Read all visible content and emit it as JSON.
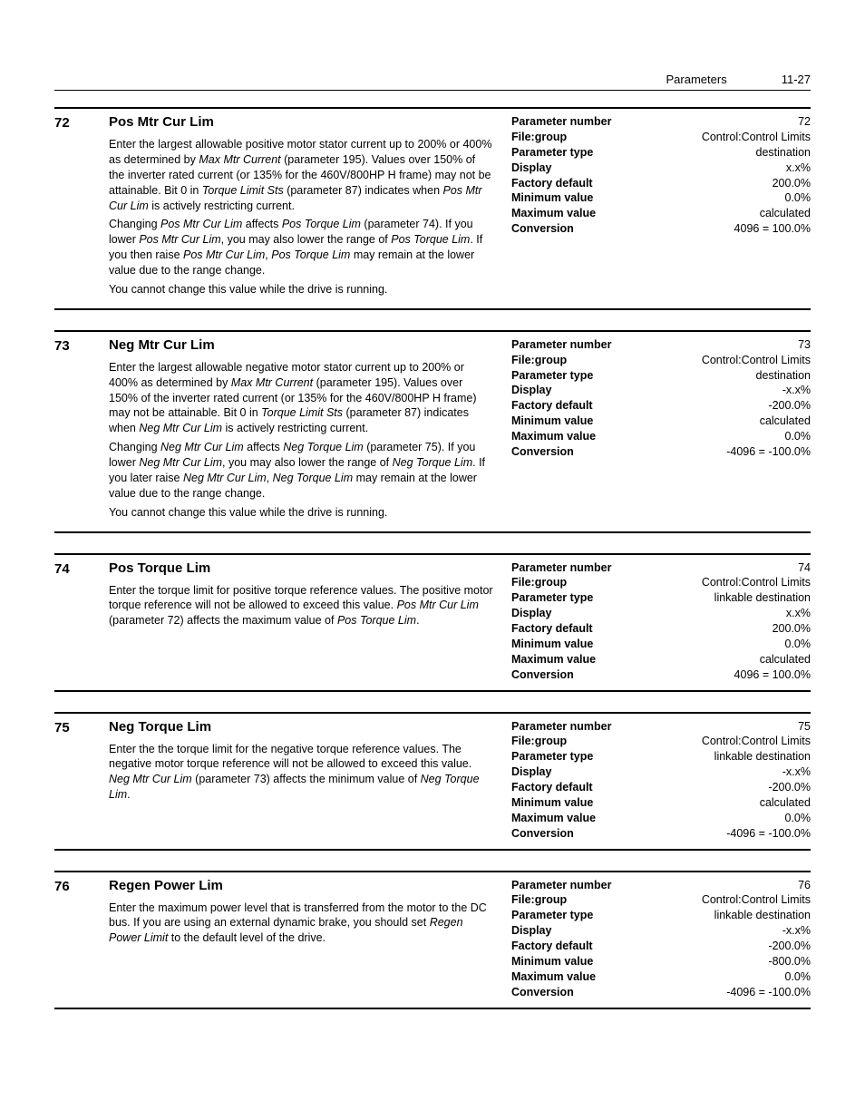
{
  "header": {
    "section": "Parameters",
    "page": "11-27"
  },
  "props_labels": {
    "pnum": "Parameter number",
    "fg": "File:group",
    "ptype": "Parameter type",
    "disp": "Display",
    "fdef": "Factory default",
    "min": "Minimum value",
    "max": "Maximum value",
    "conv": "Conversion"
  },
  "params": [
    {
      "num": "72",
      "title": "Pos Mtr Cur Lim",
      "desc": [
        [
          [
            "t",
            "Enter the largest allowable positive motor stator current up to 200% or 400% as determined by "
          ],
          [
            "i",
            "Max Mtr Current"
          ],
          [
            "t",
            " (parameter 195). Values over 150% of the inverter rated current (or 135% for the 460V/800HP H frame) may not be attainable. Bit 0 in "
          ],
          [
            "i",
            "Torque Limit Sts"
          ],
          [
            "t",
            " (parameter 87) indicates when "
          ],
          [
            "i",
            "Pos Mtr Cur Lim"
          ],
          [
            "t",
            " is actively restricting current."
          ]
        ],
        [
          [
            "t",
            "Changing "
          ],
          [
            "i",
            "Pos Mtr Cur Lim"
          ],
          [
            "t",
            " affects "
          ],
          [
            "i",
            "Pos Torque Lim"
          ],
          [
            "t",
            " (parameter 74). If you lower "
          ],
          [
            "i",
            "Pos Mtr Cur Lim"
          ],
          [
            "t",
            ", you may also lower the range of "
          ],
          [
            "i",
            "Pos Torque Lim"
          ],
          [
            "t",
            ". If you then raise "
          ],
          [
            "i",
            "Pos Mtr Cur Lim"
          ],
          [
            "t",
            ", "
          ],
          [
            "i",
            "Pos Torque Lim"
          ],
          [
            "t",
            " may remain at the lower value due to the range change."
          ]
        ],
        [
          [
            "t",
            "You cannot change this value while the drive is running."
          ]
        ]
      ],
      "props": {
        "pnum": "72",
        "fg": "Control:Control Limits",
        "ptype": "destination",
        "disp": "x.x%",
        "fdef": "200.0%",
        "min": "0.0%",
        "max": "calculated",
        "conv": "4096 = 100.0%"
      }
    },
    {
      "num": "73",
      "title": "Neg Mtr Cur Lim",
      "desc": [
        [
          [
            "t",
            "Enter the largest allowable negative motor stator current up to 200% or 400% as determined by "
          ],
          [
            "i",
            "Max Mtr Current"
          ],
          [
            "t",
            " (parameter 195). Values over 150% of the inverter rated current (or 135% for the 460V/800HP H frame) may not be attainable. Bit 0 in "
          ],
          [
            "i",
            "Torque Limit Sts"
          ],
          [
            "t",
            " (parameter 87) indicates when "
          ],
          [
            "i",
            "Neg Mtr Cur Lim"
          ],
          [
            "t",
            " is actively restricting current."
          ]
        ],
        [
          [
            "t",
            "Changing "
          ],
          [
            "i",
            "Neg Mtr Cur Lim"
          ],
          [
            "t",
            " affects "
          ],
          [
            "i",
            "Neg Torque Lim"
          ],
          [
            "t",
            " (parameter 75). If you lower "
          ],
          [
            "i",
            "Neg Mtr Cur Lim"
          ],
          [
            "t",
            ", you may also lower the range of "
          ],
          [
            "i",
            "Neg Torque Lim"
          ],
          [
            "t",
            ". If you later raise "
          ],
          [
            "i",
            "Neg Mtr Cur Lim"
          ],
          [
            "t",
            ", "
          ],
          [
            "i",
            "Neg Torque Lim"
          ],
          [
            "t",
            " may remain at the lower value due to the range change."
          ]
        ],
        [
          [
            "t",
            "You cannot change this value while the drive is running."
          ]
        ]
      ],
      "props": {
        "pnum": "73",
        "fg": "Control:Control Limits",
        "ptype": "destination",
        "disp": "-x.x%",
        "fdef": "-200.0%",
        "min": "calculated",
        "max": "0.0%",
        "conv": "-4096 = -100.0%"
      }
    },
    {
      "num": "74",
      "title": "Pos Torque Lim",
      "desc": [
        [
          [
            "t",
            "Enter the torque limit for positive torque reference values. The positive motor torque reference will not be allowed to exceed this value. "
          ],
          [
            "i",
            "Pos Mtr Cur Lim"
          ],
          [
            "t",
            " (parameter 72) affects the maximum value of "
          ],
          [
            "i",
            "Pos Torque Lim"
          ],
          [
            "t",
            "."
          ]
        ]
      ],
      "props": {
        "pnum": "74",
        "fg": "Control:Control Limits",
        "ptype": "linkable destination",
        "disp": "x.x%",
        "fdef": "200.0%",
        "min": "0.0%",
        "max": "calculated",
        "conv": "4096 = 100.0%"
      }
    },
    {
      "num": "75",
      "title": "Neg Torque Lim",
      "desc": [
        [
          [
            "t",
            "Enter the the torque limit for the negative torque reference values. The negative motor torque reference will not be allowed to exceed this value. "
          ],
          [
            "i",
            "Neg Mtr Cur Lim"
          ],
          [
            "t",
            " (parameter 73) affects the minimum value of "
          ],
          [
            "i",
            "Neg Torque Lim"
          ],
          [
            "t",
            "."
          ]
        ]
      ],
      "props": {
        "pnum": "75",
        "fg": "Control:Control Limits",
        "ptype": "linkable destination",
        "disp": "-x.x%",
        "fdef": "-200.0%",
        "min": "calculated",
        "max": "0.0%",
        "conv": "-4096 = -100.0%"
      }
    },
    {
      "num": "76",
      "title": "Regen Power Lim",
      "desc": [
        [
          [
            "t",
            "Enter the maximum power level that is transferred from the motor to the DC bus. If you are using an external dynamic brake, you should set "
          ],
          [
            "i",
            "Regen Power Limit"
          ],
          [
            "t",
            " to the default level of the drive."
          ]
        ]
      ],
      "props": {
        "pnum": "76",
        "fg": "Control:Control Limits",
        "ptype": "linkable destination",
        "disp": "-x.x%",
        "fdef": "-200.0%",
        "min": "-800.0%",
        "max": "0.0%",
        "conv": "-4096 = -100.0%"
      }
    }
  ]
}
